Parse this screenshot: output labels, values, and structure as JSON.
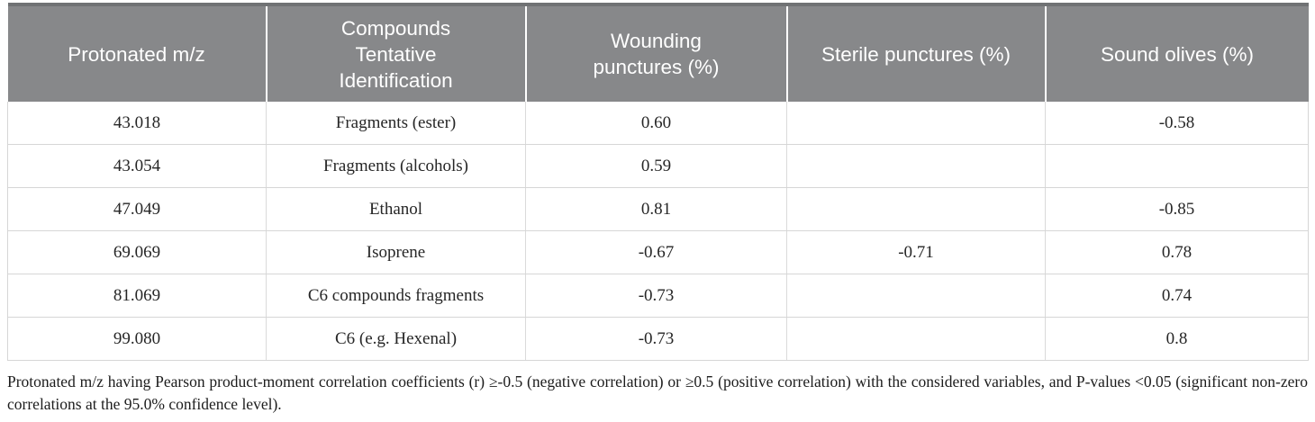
{
  "table": {
    "headers": [
      "Protonated m/z",
      "Compounds\nTentative\nIdentification",
      "Wounding\npunctures (%)",
      "Sterile punctures (%)",
      "Sound olives (%)"
    ],
    "rows": [
      [
        "43.018",
        "Fragments (ester)",
        "0.60",
        "",
        "-0.58"
      ],
      [
        "43.054",
        "Fragments (alcohols)",
        "0.59",
        "",
        ""
      ],
      [
        "47.049",
        "Ethanol",
        "0.81",
        "",
        "-0.85"
      ],
      [
        "69.069",
        "Isoprene",
        "-0.67",
        "-0.71",
        "0.78"
      ],
      [
        "81.069",
        "C6 compounds fragments",
        "-0.73",
        "",
        "0.74"
      ],
      [
        "99.080",
        "C6 (e.g. Hexenal)",
        "-0.73",
        "",
        "0.8"
      ]
    ]
  },
  "footnote": "Protonated m/z having Pearson product-moment correlation coefficients (r) ≥-0.5 (negative correlation) or ≥0.5 (positive correlation) with the considered variables, and P-values <0.05 (significant non-zero correlations at the 95.0% confidence level).",
  "colors": {
    "header_bg": "#87888A",
    "header_text": "#FFFFFF",
    "header_top_border": "#707274",
    "body_text": "#262626",
    "grid_line": "#D6D6D6"
  }
}
